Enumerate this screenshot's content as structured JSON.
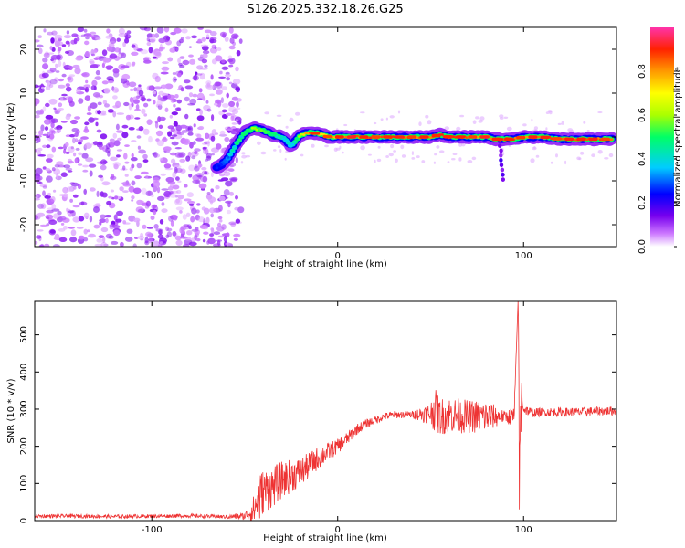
{
  "figure_title": "S126.2025.332.18.26.G25",
  "colors": {
    "snr_line": "#ee3333",
    "axis": "#000000",
    "background": "#ffffff"
  },
  "chart_data": [
    {
      "type": "heatmap",
      "name": "spectrogram",
      "title": "S126.2025.332.18.26.G25",
      "xlabel": "Height of straight line (km)",
      "ylabel": "Frequency (Hz)",
      "xlim": [
        -163,
        150
      ],
      "ylim": [
        -25,
        25
      ],
      "x_ticks": [
        -100,
        0,
        100
      ],
      "y_ticks": [
        -20,
        -10,
        0,
        10,
        20
      ],
      "colorbar": {
        "label": "Normalized spectral amplitude",
        "range": [
          0,
          1
        ],
        "ticks": [
          0.0,
          0.2,
          0.4,
          0.6,
          0.8
        ],
        "tick_labels": [
          "0.0",
          "0.2",
          "0.4",
          "0.6",
          "0.8"
        ],
        "colormap": [
          "#ffffff",
          "#cc77ff",
          "#7700ee",
          "#0000ff",
          "#00ccff",
          "#00ff66",
          "#aaff00",
          "#ffff00",
          "#ff9900",
          "#ff2200",
          "#ff33aa"
        ]
      },
      "noise_region_x": [
        -163,
        -55
      ],
      "signal_track": {
        "x": [
          -65,
          -60,
          -55,
          -50,
          -45,
          -40,
          -35,
          -30,
          -25,
          -20,
          -15,
          -10,
          -5,
          0,
          10,
          20,
          30,
          40,
          50,
          55,
          60,
          70,
          80,
          85,
          90,
          95,
          100,
          110,
          120,
          130,
          140,
          148
        ],
        "freq": [
          -7,
          -5.5,
          -2,
          1,
          2,
          1.5,
          0.5,
          0,
          -2,
          0.5,
          1,
          0.8,
          0,
          0,
          0,
          0,
          0,
          0,
          0,
          0.5,
          0,
          0,
          0,
          -0.5,
          -0.5,
          -0.5,
          0,
          0,
          -0.5,
          -0.5,
          -0.5,
          -0.5
        ],
        "amplitude": [
          0.3,
          0.35,
          0.45,
          0.5,
          0.6,
          0.55,
          0.5,
          0.45,
          0.4,
          0.6,
          0.85,
          0.7,
          0.75,
          0.8,
          0.85,
          0.85,
          0.85,
          0.85,
          0.85,
          0.9,
          0.85,
          0.85,
          0.8,
          0.85,
          0.85,
          0.85,
          0.8,
          0.85,
          0.85,
          0.85,
          0.85,
          0.85
        ]
      }
    },
    {
      "type": "line",
      "name": "snr",
      "xlabel": "Height of straight line (km)",
      "ylabel": "SNR (10 * v/v)",
      "xlim": [
        -163,
        150
      ],
      "ylim": [
        0,
        590
      ],
      "x_ticks": [
        -100,
        0,
        100
      ],
      "y_ticks": [
        0,
        100,
        200,
        300,
        400,
        500
      ],
      "series": [
        {
          "name": "SNR",
          "color": "#ee3333",
          "x": [
            -163,
            -140,
            -120,
            -100,
            -80,
            -60,
            -50,
            -45,
            -42,
            -40,
            -35,
            -30,
            -25,
            -20,
            -15,
            -10,
            -5,
            0,
            5,
            10,
            15,
            20,
            25,
            30,
            40,
            50,
            52,
            55,
            60,
            70,
            80,
            85,
            90,
            95,
            97,
            98,
            99,
            100,
            105,
            110,
            120,
            130,
            140,
            150
          ],
          "y": [
            12,
            12,
            11,
            12,
            13,
            10,
            12,
            30,
            60,
            80,
            90,
            110,
            120,
            130,
            150,
            170,
            185,
            200,
            220,
            245,
            260,
            270,
            280,
            285,
            285,
            288,
            300,
            280,
            285,
            280,
            280,
            280,
            280,
            280,
            590,
            200,
            350,
            300,
            290,
            292,
            292,
            292,
            295,
            295
          ],
          "noise_amplitude": [
            5,
            5,
            5,
            5,
            5,
            5,
            10,
            40,
            70,
            60,
            55,
            50,
            45,
            40,
            35,
            30,
            25,
            20,
            18,
            15,
            12,
            12,
            10,
            10,
            10,
            30,
            60,
            50,
            50,
            45,
            45,
            30,
            15,
            30,
            0,
            150,
            40,
            15,
            12,
            12,
            12,
            12,
            12,
            12
          ]
        }
      ]
    }
  ]
}
